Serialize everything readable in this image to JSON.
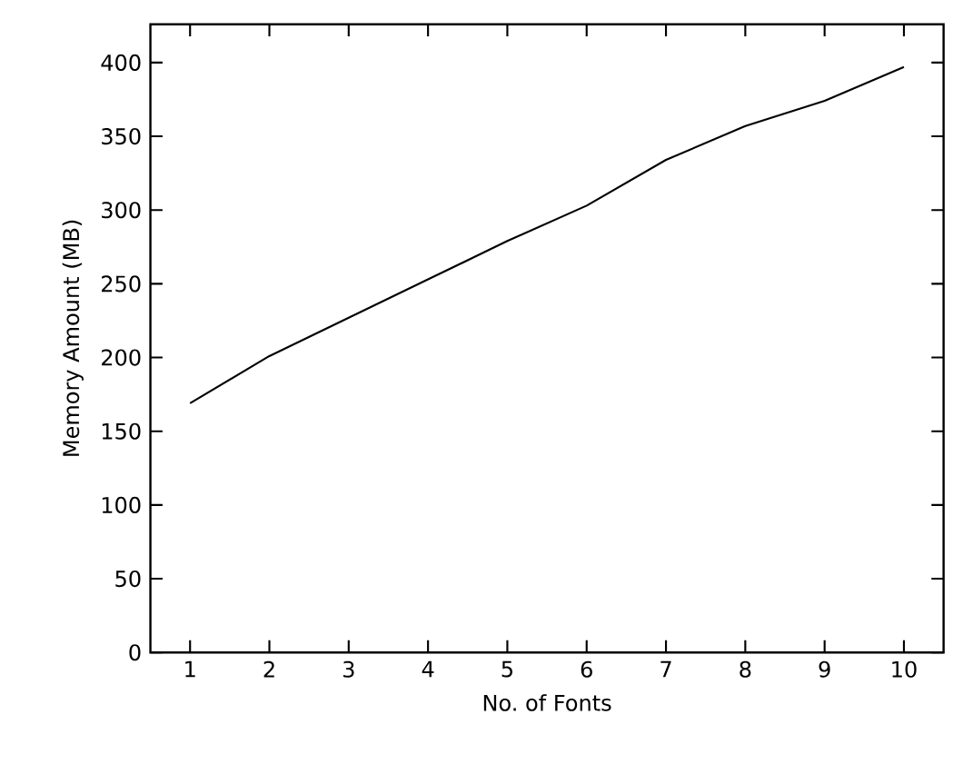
{
  "chart_data": {
    "type": "line",
    "xlabel": "No. of Fonts",
    "ylabel": "Memory Amount (MB)",
    "x": [
      1,
      2,
      3,
      4,
      5,
      6,
      7,
      8,
      9,
      10
    ],
    "series": [
      {
        "color": "#000000",
        "values": [
          169,
          201,
          227,
          253,
          279,
          303,
          334,
          357,
          374,
          397
        ]
      }
    ],
    "xlim": [
      0.5,
      10.5
    ],
    "ylim": [
      0,
      426
    ],
    "xticks": [
      1,
      2,
      3,
      4,
      5,
      6,
      7,
      8,
      9,
      10
    ],
    "yticks": [
      0,
      50,
      100,
      150,
      200,
      250,
      300,
      350,
      400
    ],
    "grid": false,
    "marker": "none",
    "line_style": "solid"
  }
}
